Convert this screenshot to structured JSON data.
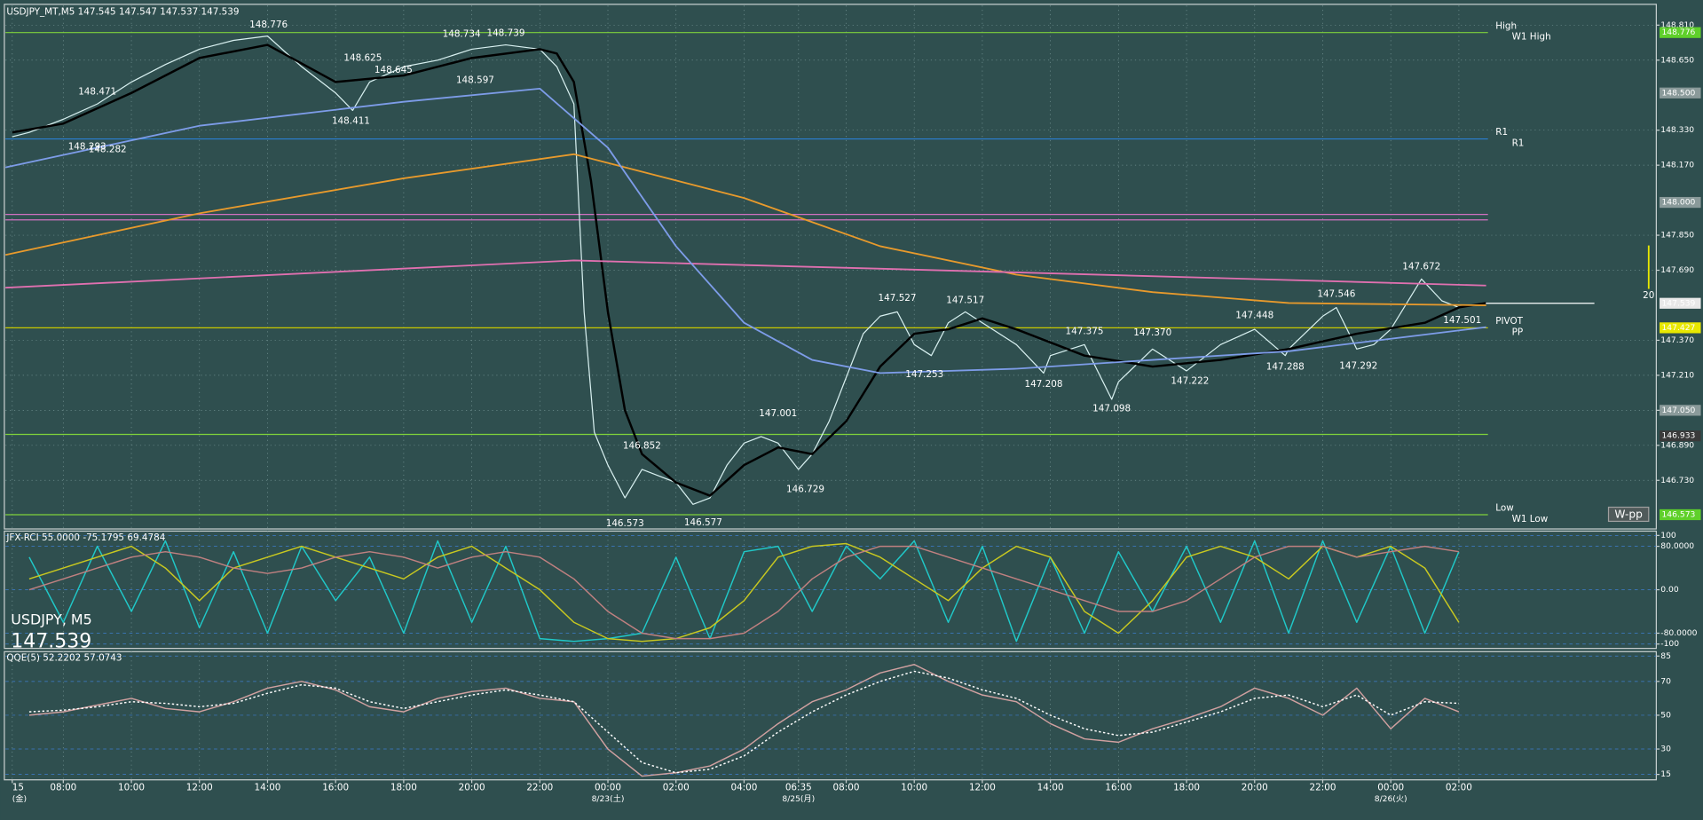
{
  "header": {
    "title": "USDJPY_MT,M5  147.545 147.547 147.537 147.539"
  },
  "chart_data": [
    {
      "type": "line",
      "title": "USDJPY_MT,M5  147.545 147.547 147.537 147.539",
      "xlim": [
        -1.7,
        46.8
      ],
      "ylim": [
        146.508,
        148.9
      ],
      "yticks": [
        {
          "value": 148.81,
          "label": "148.810"
        },
        {
          "value": 148.65,
          "label": "148.650"
        },
        {
          "value": 148.33,
          "label": "148.330"
        },
        {
          "value": 148.17,
          "label": "148.170"
        },
        {
          "value": 147.85,
          "label": "147.850"
        },
        {
          "value": 147.69,
          "label": "147.690"
        },
        {
          "value": 147.37,
          "label": "147.370"
        },
        {
          "value": 147.21,
          "label": "147.210"
        },
        {
          "value": 147.05,
          "label": "147.050"
        },
        {
          "value": 146.89,
          "label": "146.890"
        },
        {
          "value": 146.73,
          "label": "146.730"
        }
      ],
      "grid": true,
      "series": [
        {
          "color": "#d8f0f0",
          "width": 1,
          "x": [
            -1.5,
            -1,
            0,
            1,
            2,
            3,
            4,
            5,
            6,
            7,
            8,
            8.5,
            9,
            10,
            11,
            12,
            13,
            14,
            14.5,
            15,
            15.3,
            15.6,
            16,
            16.5,
            17,
            17.5,
            18,
            18.5,
            19,
            19.5,
            20,
            20.5,
            21,
            21.6,
            22,
            22.5,
            23,
            23.5,
            24,
            24.5,
            25,
            25.5,
            26,
            26.5,
            27,
            28,
            28.8,
            29,
            30,
            30.8,
            31,
            32,
            33,
            34,
            35,
            35.9,
            36,
            37,
            37.4,
            38,
            38.5,
            39,
            39.9,
            40.5,
            41,
            41.8
          ],
          "values": [
            148.3,
            148.32,
            148.38,
            148.45,
            148.55,
            148.63,
            148.7,
            148.74,
            148.76,
            148.62,
            148.5,
            148.42,
            148.55,
            148.62,
            148.65,
            148.7,
            148.72,
            148.7,
            148.62,
            148.45,
            147.5,
            146.95,
            146.8,
            146.65,
            146.78,
            146.75,
            146.72,
            146.62,
            146.65,
            146.8,
            146.9,
            146.93,
            146.9,
            146.78,
            146.85,
            147.0,
            147.2,
            147.4,
            147.48,
            147.5,
            147.35,
            147.3,
            147.45,
            147.5,
            147.45,
            147.35,
            147.22,
            147.3,
            147.35,
            147.1,
            147.18,
            147.33,
            147.23,
            147.35,
            147.42,
            147.3,
            147.33,
            147.48,
            147.52,
            147.33,
            147.35,
            147.42,
            147.65,
            147.55,
            147.52,
            147.539
          ]
        },
        {
          "color": "#000000",
          "width": 2,
          "x": [
            -1.5,
            0,
            2,
            4,
            6,
            8,
            10,
            12,
            14,
            14.5,
            15,
            15.5,
            16,
            16.5,
            17,
            18,
            19,
            20,
            21,
            22,
            23,
            24,
            25,
            26,
            27,
            28,
            30,
            32,
            34,
            36,
            38,
            40,
            41,
            41.8
          ],
          "values": [
            148.32,
            148.36,
            148.5,
            148.66,
            148.72,
            148.55,
            148.58,
            148.66,
            148.7,
            148.68,
            148.55,
            148.1,
            147.5,
            147.05,
            146.85,
            146.72,
            146.66,
            146.8,
            146.88,
            146.85,
            147.0,
            147.25,
            147.4,
            147.42,
            147.47,
            147.42,
            147.3,
            147.25,
            147.28,
            147.33,
            147.4,
            147.45,
            147.52,
            147.54
          ]
        },
        {
          "color": "#e89a2c",
          "width": 1.5,
          "x": [
            -1.7,
            4,
            10,
            15,
            20,
            24,
            28,
            32,
            36,
            41.8
          ],
          "values": [
            147.76,
            147.95,
            148.11,
            148.22,
            148.02,
            147.8,
            147.67,
            147.59,
            147.54,
            147.53
          ]
        },
        {
          "color": "#e070b0",
          "width": 1.5,
          "x": [
            -1.7,
            15,
            28,
            41.8
          ],
          "values": [
            147.61,
            147.735,
            147.68,
            147.62
          ]
        },
        {
          "color": "#7d9ce8",
          "width": 1.5,
          "x": [
            -1.7,
            4,
            10,
            14,
            16,
            18,
            20,
            22,
            24,
            28,
            32,
            36,
            41.8
          ],
          "values": [
            148.16,
            148.35,
            148.46,
            148.52,
            148.25,
            147.8,
            147.45,
            147.28,
            147.22,
            147.24,
            147.28,
            147.32,
            147.43
          ]
        }
      ],
      "levels": [
        {
          "value": 148.776,
          "color": "#7fd13b",
          "labels": [
            "High",
            "W1 High"
          ],
          "label_colors": [
            "#d070e0",
            "#9be03b"
          ]
        },
        {
          "value": 148.29,
          "color": "#2a7fd4",
          "labels": [
            "R1",
            "R1"
          ],
          "label_colors": [
            "#3a8fe4",
            "#a0a0a0"
          ]
        },
        {
          "value": 147.427,
          "color": "#c8c800",
          "labels": [
            "PIVOT",
            "PP"
          ],
          "label_colors": [
            "#e8e800",
            "#9be03b"
          ]
        },
        {
          "value": 146.573,
          "color": "#7fd13b",
          "labels": [
            "Low",
            "W1 Low"
          ],
          "label_colors": [
            "#d070e0",
            "#9be03b"
          ]
        },
        {
          "value": 147.92,
          "color": "#d070c0"
        },
        {
          "value": 147.945,
          "color": "#d070c0"
        },
        {
          "value": 146.94,
          "color": "#7fd13b"
        }
      ],
      "price_labels": [
        {
          "value": 148.776,
          "color": "#5fd02a"
        },
        {
          "value": 148.5,
          "label": "148.500",
          "color": "#8a9a9a"
        },
        {
          "value": 148.0,
          "label": "148.000",
          "color": "#8a9a9a"
        },
        {
          "value": 147.539,
          "color": "#e8e8e8"
        },
        {
          "value": 147.427,
          "color": "#e8e800"
        },
        {
          "value": 147.05,
          "label": "147.050",
          "color": "#8a9a9a"
        },
        {
          "value": 146.933,
          "color": "#3a3a3a"
        },
        {
          "value": 146.573,
          "color": "#5fd02a"
        }
      ],
      "swing_highs": [
        {
          "x": 6.03,
          "value": 148.776
        },
        {
          "x": 11.7,
          "value": 148.734
        },
        {
          "x": 13.0,
          "value": 148.739
        },
        {
          "x": 8.8,
          "value": 148.625
        },
        {
          "x": 1.0,
          "value": 148.471
        },
        {
          "x": 17.0,
          "value": 146.852
        },
        {
          "x": 21.0,
          "value": 147.001
        },
        {
          "x": 24.5,
          "value": 147.527
        },
        {
          "x": 26.5,
          "value": 147.517
        },
        {
          "x": 30.0,
          "value": 147.375
        },
        {
          "x": 32.0,
          "value": 147.37,
          "label": "147.370"
        },
        {
          "x": 35.0,
          "value": 147.448
        },
        {
          "x": 37.4,
          "value": 147.546
        },
        {
          "x": 39.9,
          "value": 147.672
        }
      ],
      "swing_lows": [
        {
          "x": 9.7,
          "value": 148.645
        },
        {
          "x": 12.1,
          "value": 148.597
        },
        {
          "x": 8.45,
          "value": 148.411
        },
        {
          "x": 0.7,
          "value": 148.293
        },
        {
          "x": 1.3,
          "value": 148.282
        },
        {
          "x": 16.5,
          "value": 146.573
        },
        {
          "x": 18.8,
          "value": 146.577
        },
        {
          "x": 21.8,
          "value": 146.729
        },
        {
          "x": 25.3,
          "value": 147.253
        },
        {
          "x": 28.8,
          "value": 147.208
        },
        {
          "x": 30.8,
          "value": 147.098
        },
        {
          "x": 33.1,
          "value": 147.222
        },
        {
          "x": 35.9,
          "value": 147.288
        },
        {
          "x": 38.05,
          "value": 147.292
        },
        {
          "x": 41.1,
          "value": 147.501
        }
      ],
      "bar_count": "20",
      "button": "W-pp"
    },
    {
      "type": "line",
      "title": "JFX-RCI 55.0000 -75.1795 69.4784",
      "xlim": [
        -1.7,
        46.8
      ],
      "ylim": [
        -108,
        108
      ],
      "yticks": [
        100,
        {
          "value": 80,
          "label": "80.0000"
        },
        {
          "value": 0,
          "label": "0.00"
        },
        {
          "value": -80,
          "label": "-80.0000"
        },
        -100
      ],
      "watermark": [
        "USDJPY, M5",
        "147.539"
      ],
      "x": [
        -1,
        0,
        1,
        2,
        3,
        4,
        5,
        6,
        7,
        8,
        9,
        10,
        11,
        12,
        13,
        14,
        15,
        16,
        17,
        18,
        19,
        20,
        21,
        22,
        23,
        24,
        25,
        26,
        27,
        28,
        29,
        30,
        31,
        32,
        33,
        34,
        35,
        36,
        37,
        38,
        39,
        40,
        41
      ],
      "series": [
        {
          "color": "#20c8c8",
          "values": [
            60,
            -60,
            80,
            -40,
            90,
            -70,
            70,
            -80,
            80,
            -20,
            60,
            -80,
            90,
            -60,
            80,
            -90,
            -95,
            -90,
            -80,
            60,
            -90,
            70,
            80,
            -40,
            80,
            20,
            90,
            -60,
            80,
            -95,
            60,
            -80,
            70,
            -40,
            80,
            -60,
            90,
            -80,
            90,
            -60,
            80,
            -80,
            70
          ]
        },
        {
          "color": "#c8c820",
          "values": [
            20,
            40,
            60,
            80,
            40,
            -20,
            40,
            60,
            80,
            60,
            40,
            20,
            60,
            80,
            40,
            0,
            -60,
            -90,
            -95,
            -90,
            -70,
            -20,
            60,
            80,
            85,
            60,
            20,
            -20,
            40,
            80,
            60,
            -40,
            -80,
            -20,
            60,
            80,
            60,
            20,
            80,
            60,
            80,
            40,
            -60
          ]
        },
        {
          "color": "#c08080",
          "values": [
            0,
            20,
            40,
            60,
            70,
            60,
            40,
            30,
            40,
            60,
            70,
            60,
            40,
            60,
            70,
            60,
            20,
            -40,
            -80,
            -90,
            -90,
            -80,
            -40,
            20,
            60,
            80,
            80,
            60,
            40,
            20,
            0,
            -20,
            -40,
            -40,
            -20,
            20,
            60,
            80,
            80,
            60,
            70,
            80,
            70
          ]
        }
      ]
    },
    {
      "type": "line",
      "title": "QQE(5) 52.2202 57.0743",
      "xlim": [
        -1.7,
        46.8
      ],
      "ylim": [
        11.8,
        87.6
      ],
      "yticks": [
        85,
        70,
        50,
        30,
        15
      ],
      "x": [
        -1,
        0,
        1,
        2,
        3,
        4,
        5,
        6,
        7,
        8,
        9,
        10,
        11,
        12,
        13,
        14,
        15,
        16,
        17,
        18,
        19,
        20,
        21,
        22,
        23,
        24,
        25,
        26,
        27,
        28,
        29,
        30,
        31,
        32,
        33,
        34,
        35,
        36,
        37,
        38,
        39,
        40,
        41
      ],
      "series": [
        {
          "color": "#d0a0a0",
          "dash": false,
          "values": [
            50,
            52,
            56,
            60,
            54,
            52,
            58,
            66,
            70,
            65,
            55,
            52,
            60,
            64,
            66,
            60,
            58,
            30,
            14,
            16,
            20,
            30,
            45,
            58,
            65,
            75,
            80,
            70,
            62,
            58,
            45,
            36,
            34,
            42,
            48,
            55,
            66,
            60,
            50,
            66,
            42,
            60,
            52
          ]
        },
        {
          "color": "#ffffff",
          "dash": true,
          "values": [
            52,
            53,
            55,
            58,
            57,
            55,
            57,
            63,
            68,
            66,
            58,
            54,
            58,
            62,
            65,
            62,
            58,
            40,
            22,
            16,
            18,
            26,
            40,
            52,
            62,
            70,
            76,
            72,
            65,
            60,
            50,
            42,
            38,
            40,
            46,
            52,
            60,
            62,
            55,
            62,
            50,
            58,
            57
          ]
        }
      ],
      "xticks": [
        {
          "value": -1.5,
          "label": "15"
        },
        {
          "value": 0,
          "label": "08:00"
        },
        {
          "value": 2,
          "label": "10:00"
        },
        {
          "value": 4,
          "label": "12:00"
        },
        {
          "value": 6,
          "label": "14:00"
        },
        {
          "value": 8,
          "label": "16:00"
        },
        {
          "value": 10,
          "label": "18:00"
        },
        {
          "value": 12,
          "label": "20:00"
        },
        {
          "value": 14,
          "label": "22:00"
        },
        {
          "value": 16,
          "label": "00:00"
        },
        {
          "value": 18,
          "label": "02:00"
        },
        {
          "value": 20,
          "label": "04:00"
        },
        {
          "value": 21.6,
          "label": "06:35"
        },
        {
          "value": 23,
          "label": "08:00"
        },
        {
          "value": 25,
          "label": "10:00"
        },
        {
          "value": 27,
          "label": "12:00"
        },
        {
          "value": 29,
          "label": "14:00"
        },
        {
          "value": 31,
          "label": "16:00"
        },
        {
          "value": 33,
          "label": "18:00"
        },
        {
          "value": 35,
          "label": "20:00"
        },
        {
          "value": 37,
          "label": "22:00"
        },
        {
          "value": 39,
          "label": "00:00"
        },
        {
          "value": 41,
          "label": "02:00"
        }
      ],
      "xdates": [
        {
          "value": -1.5,
          "label": "(金)"
        },
        {
          "value": 16,
          "label": "8/23(土)"
        },
        {
          "value": 21.6,
          "label": "8/25(月)"
        },
        {
          "value": 39,
          "label": "8/26(火)"
        }
      ]
    }
  ]
}
